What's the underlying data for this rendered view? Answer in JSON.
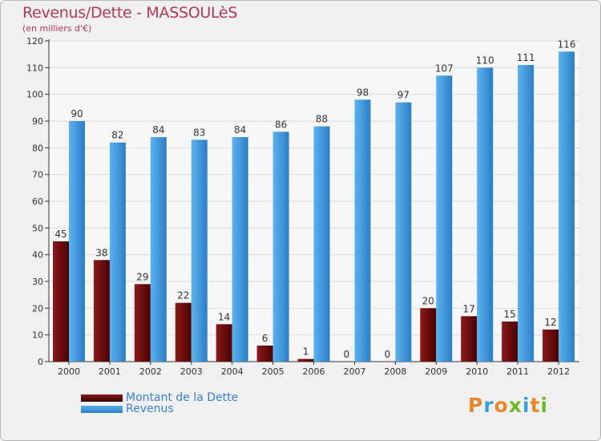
{
  "header": {
    "title": "Revenus/Dette - MASSOULèS",
    "subtitle": "(en milliers d'€)"
  },
  "chart_data": {
    "type": "bar",
    "categories": [
      "2000",
      "2001",
      "2002",
      "2003",
      "2004",
      "2005",
      "2006",
      "2007",
      "2008",
      "2009",
      "2010",
      "2011",
      "2012"
    ],
    "series": [
      {
        "name": "Montant de la Dette",
        "color": "#6b0a0a",
        "values": [
          45,
          38,
          29,
          22,
          14,
          6,
          1,
          0,
          0,
          20,
          17,
          15,
          12
        ]
      },
      {
        "name": "Revenus",
        "color": "#3b91d8",
        "values": [
          90,
          82,
          84,
          83,
          84,
          86,
          88,
          98,
          97,
          107,
          110,
          111,
          116
        ]
      }
    ],
    "yticks": [
      0,
      10,
      20,
      30,
      40,
      50,
      60,
      70,
      80,
      90,
      100,
      110,
      120
    ],
    "ylim": [
      0,
      120
    ],
    "grid": true,
    "legend_position": "bottom-left"
  },
  "legend": {
    "items": [
      {
        "label": "Montant de la Dette",
        "color": "#6b0a0a"
      },
      {
        "label": "Revenus",
        "color": "#3b91d8"
      }
    ]
  },
  "logo": {
    "letters": [
      {
        "ch": "P",
        "color": "#e8862a"
      },
      {
        "ch": "r",
        "color": "#3aa0d8"
      },
      {
        "ch": "o",
        "color": "#e8862a"
      },
      {
        "ch": "x",
        "color": "#6ab82e"
      },
      {
        "ch": "i",
        "color": "#3aa0d8"
      },
      {
        "ch": "t",
        "color": "#e8862a"
      },
      {
        "ch": "i",
        "color": "#6ab82e"
      }
    ]
  }
}
